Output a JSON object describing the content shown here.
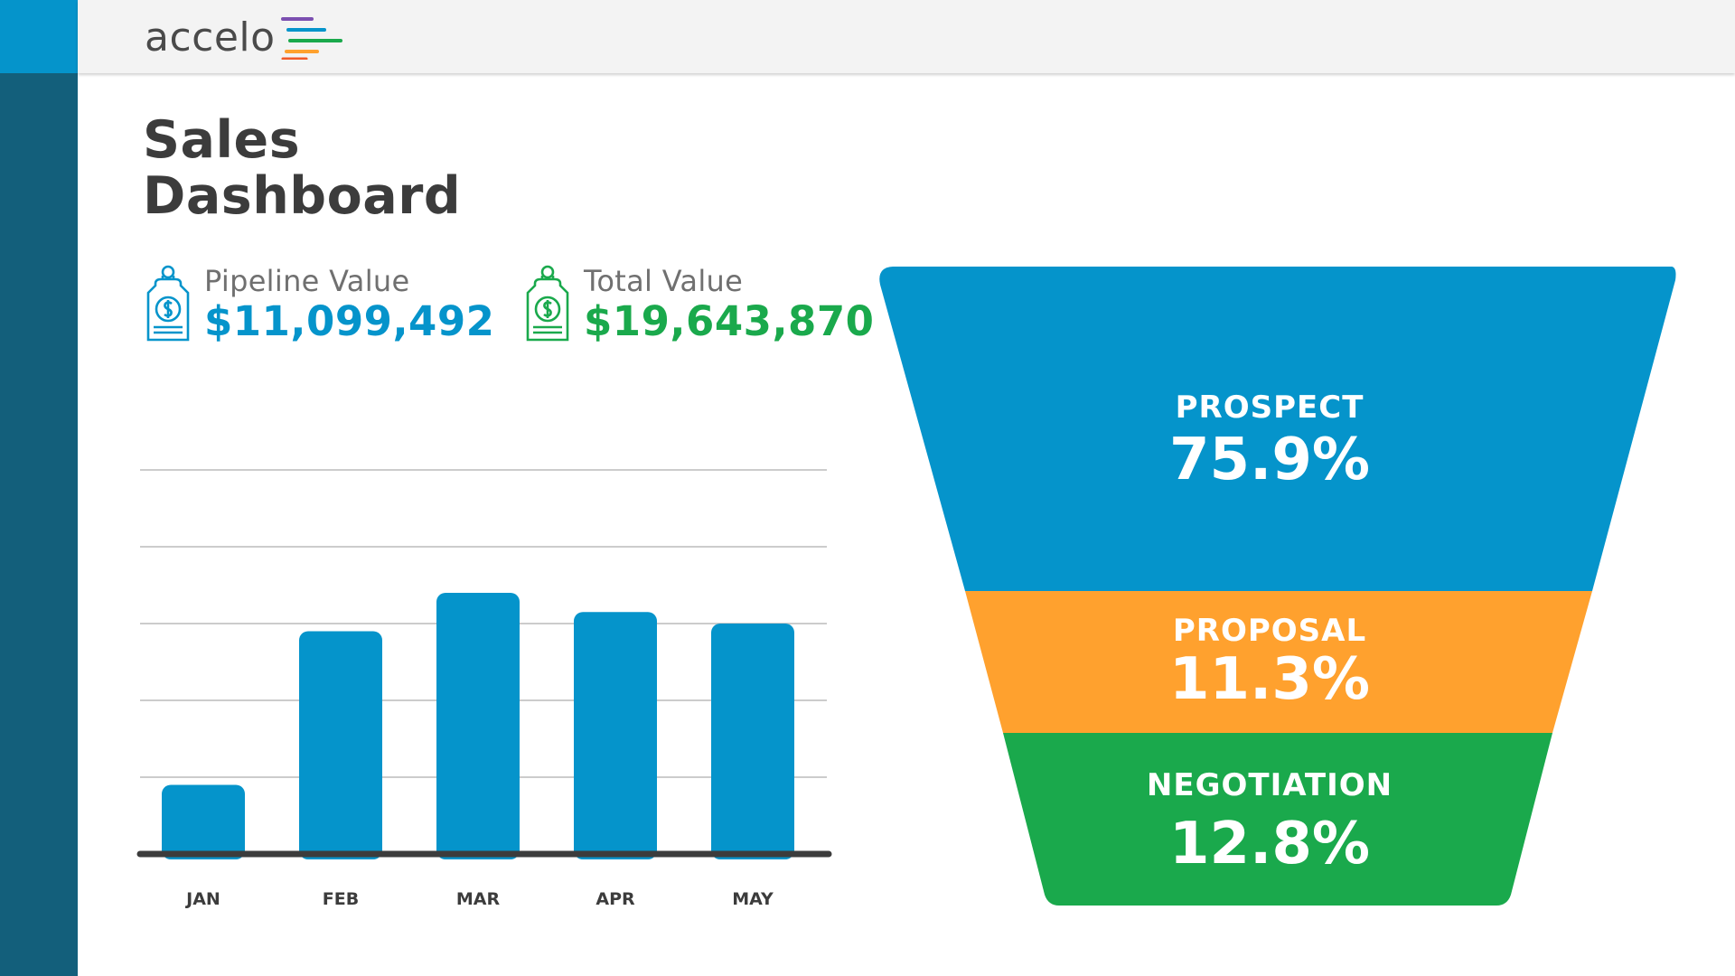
{
  "brand": {
    "name": "accelo",
    "colors": {
      "blue": "#0594cb",
      "dark_teal": "#135f7b",
      "orange": "#ffa12e",
      "green": "#1aa94c",
      "purple": "#7b4fb0"
    }
  },
  "page": {
    "title_line1": "Sales",
    "title_line2": "Dashboard"
  },
  "kpis": {
    "pipeline": {
      "label": "Pipeline Value",
      "value": "$11,099,492",
      "icon": "price-tag-dollar-icon"
    },
    "total": {
      "label": "Total Value",
      "value": "$19,643,870",
      "icon": "price-tag-dollar-icon"
    }
  },
  "chart_data": {
    "type": "bar",
    "categories": [
      "JAN",
      "FEB",
      "MAR",
      "APR",
      "MAY"
    ],
    "values": [
      0.9,
      2.9,
      3.4,
      3.15,
      3.0
    ],
    "ylim": [
      0,
      5
    ],
    "grid": true,
    "color": "#0594cb"
  },
  "funnel": {
    "stages": [
      {
        "label": "PROSPECT",
        "value": "75.9%",
        "color": "#0594cb"
      },
      {
        "label": "PROPOSAL",
        "value": "11.3%",
        "color": "#ffa12e"
      },
      {
        "label": "NEGOTIATION",
        "value": "12.8%",
        "color": "#1aa94c"
      }
    ]
  }
}
